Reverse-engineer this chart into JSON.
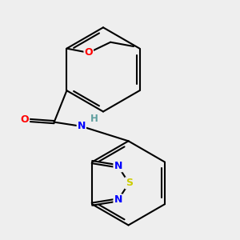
{
  "background_color": "#eeeeee",
  "bond_color": "#000000",
  "atom_colors": {
    "O": "#ff0000",
    "N": "#0000ff",
    "S": "#cccc00",
    "H": "#5f9f9f",
    "C": "#000000"
  },
  "figsize": [
    3.0,
    3.0
  ],
  "dpi": 100
}
